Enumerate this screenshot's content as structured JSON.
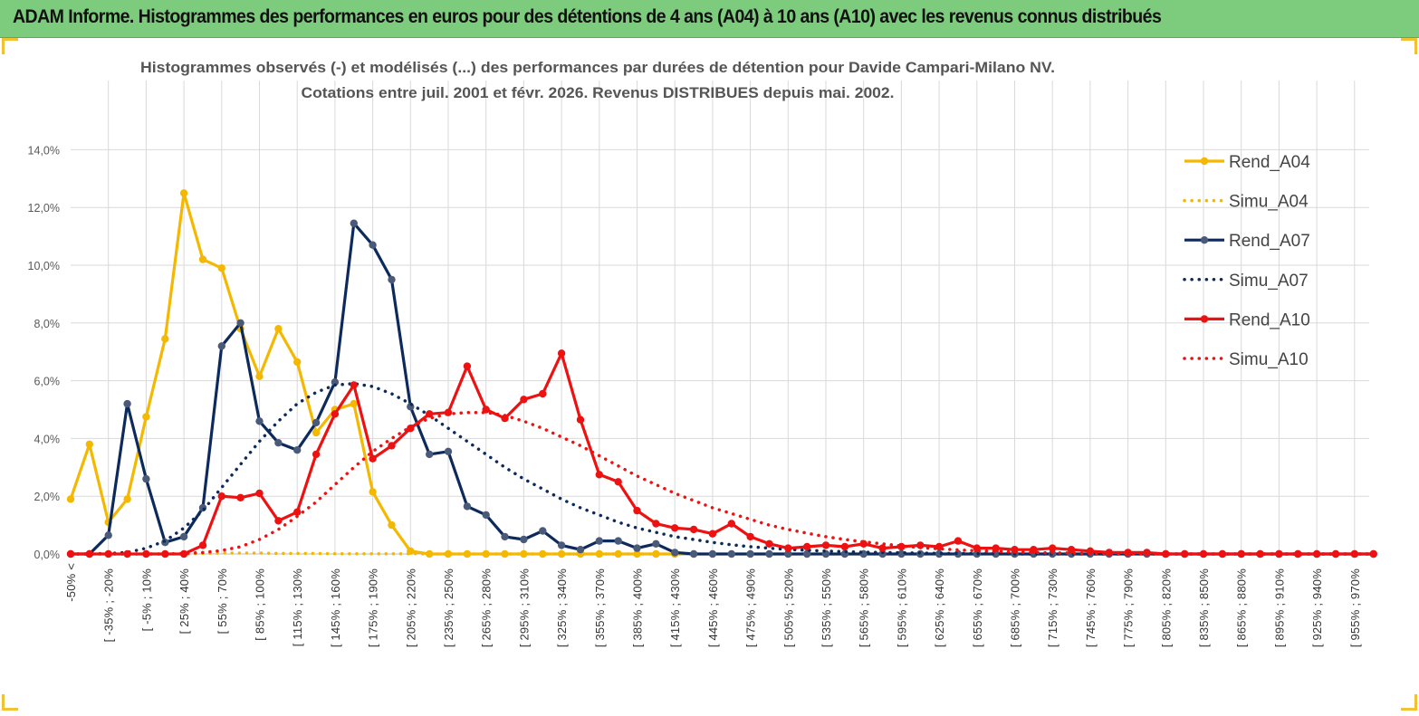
{
  "header": {
    "title": "ADAM Informe. Histogrammes des performances en euros pour des détentions de 4 ans (A04) à 10 ans (A10) avec les revenus connus distribués"
  },
  "chart_data": {
    "type": "line",
    "title_line1": "Histogrammes observés (-) et modélisés (...) des performances par durées de détention pour Davide Campari-Milano NV.",
    "title_line2": "Cotations entre juil. 2001 et févr. 2026. Revenus DISTRIBUES depuis mai. 2002.",
    "y_ticks": [
      "0,0%",
      "2,0%",
      "4,0%",
      "6,0%",
      "8,0%",
      "10,0%",
      "12,0%",
      "14,0%"
    ],
    "ylim": [
      0,
      14
    ],
    "x_labels": [
      "-50% <",
      "[ -35% ; -20%",
      "[ -5% ; 10%",
      "[ 25% ; 40%",
      "[ 55% ; 70%",
      "[ 85% ; 100%",
      "[ 115% ; 130%",
      "[ 145% ; 160%",
      "[ 175% ; 190%",
      "[ 205% ; 220%",
      "[ 235% ; 250%",
      "[ 265% ; 280%",
      "[ 295% ; 310%",
      "[ 325% ; 340%",
      "[ 355% ; 370%",
      "[ 385% ; 400%",
      "[ 415% ; 430%",
      "[ 445% ; 460%",
      "[ 475% ; 490%",
      "[ 505% ; 520%",
      "[ 535% ; 550%",
      "[ 565% ; 580%",
      "[ 595% ; 610%",
      "[ 625% ; 640%",
      "[ 655% ; 670%",
      "[ 685% ; 700%",
      "[ 715% ; 730%",
      "[ 745% ; 760%",
      "[ 775% ; 790%",
      "[ 805% ; 820%",
      "[ 835% ; 850%",
      "[ 865% ; 880%",
      "[ 895% ; 910%",
      "[ 925% ; 940%",
      "[ 955% ; 970%"
    ],
    "series": [
      {
        "name": "Rend_A04",
        "style": "solid",
        "color": "#f5b800",
        "markers": true,
        "values": [
          1.9,
          3.8,
          1.1,
          1.9,
          4.75,
          7.45,
          12.5,
          10.2,
          9.9,
          7.8,
          6.15,
          7.8,
          6.65,
          4.2,
          5.0,
          5.2,
          2.15,
          1.0,
          0.1,
          0,
          0,
          0,
          0,
          0,
          0,
          0,
          0,
          0,
          0,
          0,
          0,
          0,
          0,
          0
        ]
      },
      {
        "name": "Simu_A04",
        "style": "dotted",
        "color": "#f5b800",
        "markers": false,
        "values": [
          0,
          0,
          0,
          0,
          0,
          0,
          0,
          0.02,
          0.03,
          0.03,
          0.03,
          0.02,
          0.02,
          0.02,
          0.01,
          0.01,
          0.01,
          0.01,
          0.01,
          0,
          0,
          0,
          0,
          0,
          0,
          0,
          0,
          0,
          0,
          0,
          0,
          0,
          0,
          0
        ]
      },
      {
        "name": "Rend_A07",
        "style": "solid",
        "color": "#0d2a5c",
        "markers": true,
        "values": [
          0,
          0,
          0.65,
          5.2,
          2.6,
          0.4,
          0.6,
          1.6,
          7.2,
          8.0,
          4.6,
          3.85,
          3.6,
          4.55,
          5.95,
          11.45,
          10.7,
          9.5,
          5.1,
          3.45,
          3.55,
          1.65,
          1.35,
          0.6,
          0.5,
          0.8,
          0.3,
          0.15,
          0.45,
          0.45,
          0.2,
          0.35,
          0.05,
          0,
          0,
          0,
          0,
          0,
          0,
          0,
          0,
          0,
          0,
          0,
          0,
          0,
          0,
          0,
          0,
          0,
          0,
          0,
          0,
          0,
          0,
          0,
          0,
          0,
          0,
          0,
          0,
          0,
          0,
          0,
          0,
          0,
          0,
          0,
          0,
          0
        ]
      },
      {
        "name": "Simu_A07",
        "style": "dotted",
        "color": "#0d2a5c",
        "markers": false,
        "values": [
          0,
          0,
          0.02,
          0.05,
          0.2,
          0.45,
          0.9,
          1.5,
          2.3,
          3.1,
          3.9,
          4.6,
          5.2,
          5.6,
          5.85,
          5.9,
          5.8,
          5.55,
          5.2,
          4.8,
          4.35,
          3.9,
          3.45,
          3.0,
          2.6,
          2.25,
          1.9,
          1.6,
          1.35,
          1.1,
          0.9,
          0.75,
          0.6,
          0.5,
          0.4,
          0.32,
          0.25,
          0.2,
          0.16,
          0.13,
          0.1,
          0.08,
          0.06,
          0.05,
          0.04,
          0.03,
          0.02,
          0.02,
          0.01,
          0.01,
          0,
          0,
          0,
          0,
          0,
          0,
          0,
          0,
          0,
          0,
          0,
          0,
          0,
          0,
          0,
          0,
          0,
          0,
          0,
          0
        ]
      },
      {
        "name": "Rend_A10",
        "style": "solid",
        "color": "#ee1111",
        "markers": true,
        "values": [
          0,
          0,
          0,
          0,
          0,
          0,
          0,
          0.3,
          2.0,
          1.95,
          2.1,
          1.15,
          1.45,
          3.45,
          4.85,
          5.85,
          3.3,
          3.75,
          4.35,
          4.85,
          4.9,
          6.5,
          5.0,
          4.7,
          5.35,
          5.55,
          6.95,
          4.65,
          2.75,
          2.5,
          1.5,
          1.05,
          0.9,
          0.85,
          0.7,
          1.05,
          0.6,
          0.35,
          0.2,
          0.25,
          0.3,
          0.25,
          0.35,
          0.2,
          0.25,
          0.3,
          0.25,
          0.45,
          0.2,
          0.2,
          0.15,
          0.15,
          0.2,
          0.15,
          0.1,
          0.05,
          0.05,
          0.05,
          0,
          0,
          0,
          0,
          0,
          0,
          0,
          0,
          0,
          0,
          0,
          0
        ]
      },
      {
        "name": "Simu_A10",
        "style": "dotted",
        "color": "#ee1111",
        "markers": false,
        "values": [
          0,
          0,
          0,
          0,
          0,
          0,
          0.02,
          0.05,
          0.12,
          0.25,
          0.5,
          0.85,
          1.3,
          1.8,
          2.4,
          3.0,
          3.55,
          4.0,
          4.4,
          4.7,
          4.85,
          4.9,
          4.9,
          4.8,
          4.6,
          4.35,
          4.05,
          3.75,
          3.4,
          3.05,
          2.7,
          2.4,
          2.1,
          1.85,
          1.6,
          1.4,
          1.2,
          1.0,
          0.85,
          0.72,
          0.6,
          0.5,
          0.42,
          0.35,
          0.28,
          0.22,
          0.18,
          0.14,
          0.11,
          0.09,
          0.07,
          0.05,
          0.04,
          0.03,
          0.02,
          0.02,
          0.01,
          0.01,
          0,
          0,
          0,
          0,
          0,
          0,
          0,
          0,
          0,
          0,
          0,
          0
        ]
      }
    ],
    "legend": [
      "Rend_A04",
      "Simu_A04",
      "Rend_A07",
      "Simu_A07",
      "Rend_A10",
      "Simu_A10"
    ]
  }
}
